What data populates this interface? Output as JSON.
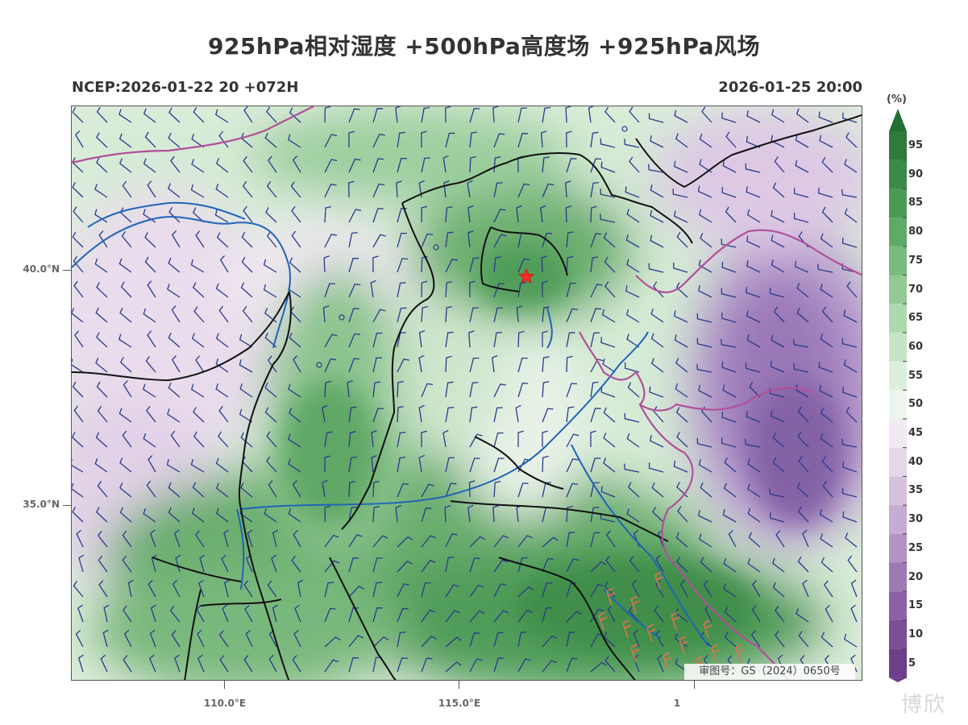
{
  "header": {
    "title": "925hPa相对湿度 +500hPa高度场 +925hPa风场",
    "model_run": "NCEP:2026-01-22 20 +072H",
    "valid_time": "2026-01-25 20:00"
  },
  "axes": {
    "lat_ticks": [
      "40.0°N",
      "35.0°N"
    ],
    "lon_ticks": [
      "110.0°E",
      "115.0°E",
      "1"
    ]
  },
  "colorbar": {
    "unit": "(%)",
    "levels": [
      "95",
      "90",
      "85",
      "80",
      "75",
      "70",
      "65",
      "60",
      "55",
      "50",
      "45",
      "40",
      "35",
      "30",
      "25",
      "20",
      "15",
      "10",
      "5"
    ],
    "colors": [
      "#2f7a3c",
      "#3c8a47",
      "#4a9a55",
      "#5faa66",
      "#78bb7c",
      "#93c994",
      "#aed8ae",
      "#c7e4c6",
      "#dcefdc",
      "#eef5ee",
      "#f1eaf2",
      "#e6d8ea",
      "#d7c2de",
      "#c6abd2",
      "#b293c4",
      "#9e7ab5",
      "#8a62a5",
      "#7a4f97",
      "#6c3f8b"
    ]
  },
  "map": {
    "marker": "star-marker",
    "boundary_colors": {
      "province": "#111111",
      "coast": "#b0509a",
      "river": "#1f64b8",
      "wind_barb": "#2b3a8c",
      "strong_wind": "#e07050"
    }
  },
  "footer": {
    "approval": "审图号：GS（2024）0650号",
    "watermark": "博欣"
  }
}
